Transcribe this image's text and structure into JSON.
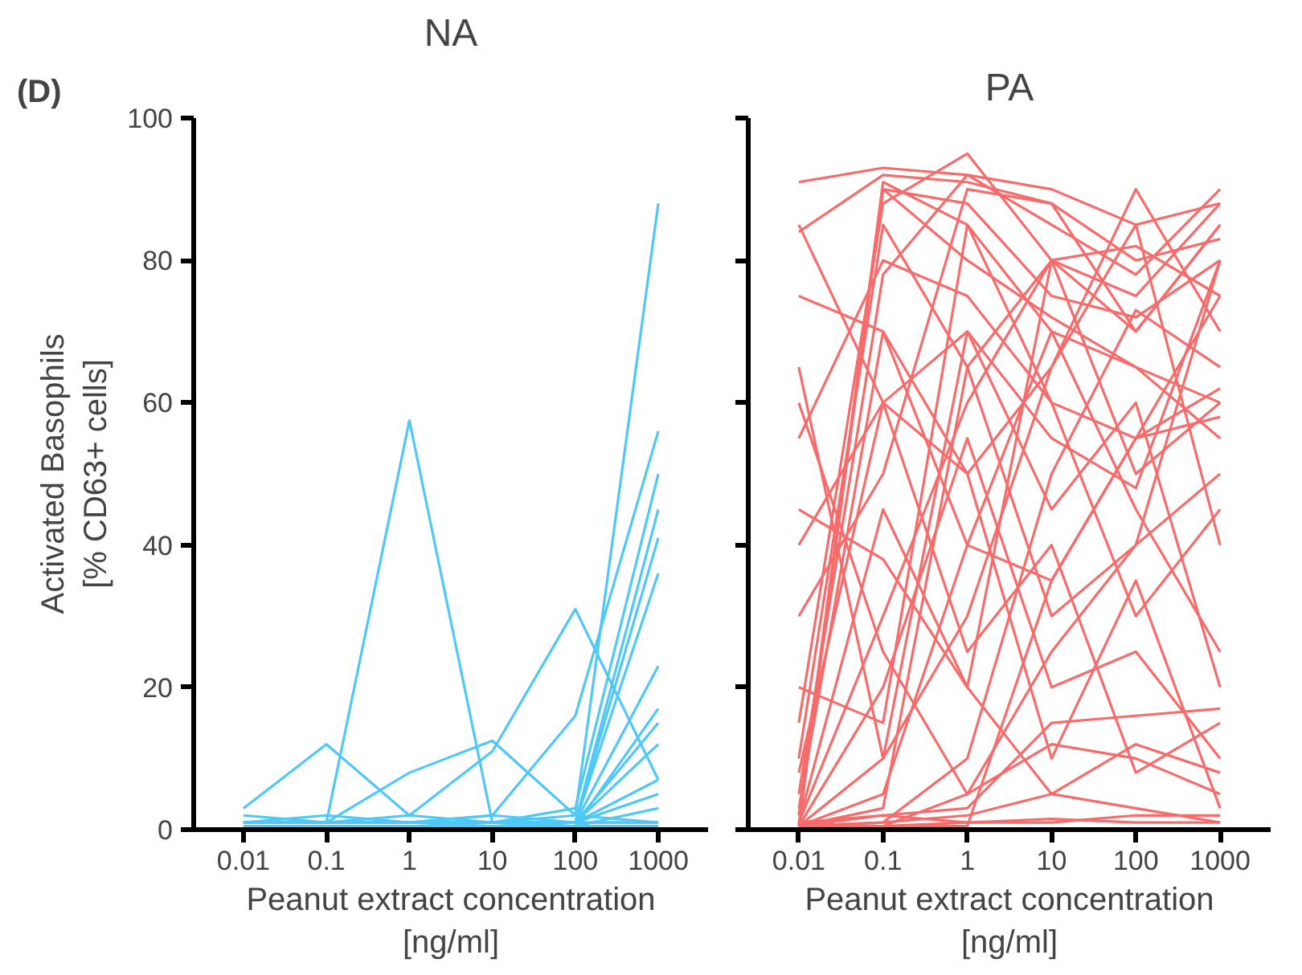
{
  "chart_data": [
    {
      "type": "line",
      "title": "NA",
      "xlabel": "Peanut extract concentration\n[ng/ml]",
      "ylabel": "Activated Basophils\n[% CD63+ cells]",
      "annotations": [
        "(D)"
      ],
      "categories": [
        "0.01",
        "0.1",
        "1",
        "10",
        "100",
        "1000"
      ],
      "ylim": [
        0,
        100
      ],
      "yticks": [
        0,
        20,
        40,
        60,
        80,
        100
      ],
      "grid": false,
      "series": [
        {
          "color": "#4fc8f5",
          "values": [
            1,
            1,
            1,
            1,
            2,
            88
          ]
        },
        {
          "color": "#4fc8f5",
          "values": [
            1,
            1,
            57.5,
            1,
            1,
            7
          ]
        },
        {
          "color": "#4fc8f5",
          "values": [
            3,
            12,
            2,
            1,
            1,
            1
          ]
        },
        {
          "color": "#4fc8f5",
          "values": [
            1,
            1,
            8,
            12.5,
            2,
            1
          ]
        },
        {
          "color": "#4fc8f5",
          "values": [
            1,
            1,
            2,
            11,
            31,
            7
          ]
        },
        {
          "color": "#4fc8f5",
          "values": [
            1,
            1,
            1,
            2,
            16,
            56
          ]
        },
        {
          "color": "#4fc8f5",
          "values": [
            1,
            1,
            1,
            1,
            3,
            50
          ]
        },
        {
          "color": "#4fc8f5",
          "values": [
            1,
            1,
            1,
            1,
            1,
            45
          ]
        },
        {
          "color": "#4fc8f5",
          "values": [
            1,
            1,
            1,
            1,
            1,
            41
          ]
        },
        {
          "color": "#4fc8f5",
          "values": [
            1,
            2,
            1,
            1,
            1,
            36
          ]
        },
        {
          "color": "#4fc8f5",
          "values": [
            1,
            1,
            1,
            1,
            1,
            23
          ]
        },
        {
          "color": "#4fc8f5",
          "values": [
            1,
            1,
            1,
            1,
            0.5,
            17
          ]
        },
        {
          "color": "#4fc8f5",
          "values": [
            1,
            1,
            1,
            1,
            1,
            15
          ]
        },
        {
          "color": "#4fc8f5",
          "values": [
            1,
            1,
            1,
            0.5,
            1,
            12
          ]
        },
        {
          "color": "#4fc8f5",
          "values": [
            1,
            1,
            1,
            1,
            1,
            5
          ]
        },
        {
          "color": "#4fc8f5",
          "values": [
            0.5,
            0.5,
            0.5,
            0.5,
            0.5,
            3
          ]
        },
        {
          "color": "#4fc8f5",
          "values": [
            2,
            1,
            1,
            2,
            1,
            1
          ]
        },
        {
          "color": "#4fc8f5",
          "values": [
            0.5,
            0.5,
            0.5,
            0.5,
            0.5,
            0.5
          ]
        }
      ]
    },
    {
      "type": "line",
      "title": "PA",
      "xlabel": "Peanut extract concentration\n[ng/ml]",
      "categories": [
        "0.01",
        "0.1",
        "1",
        "10",
        "100",
        "1000"
      ],
      "ylim": [
        0,
        100
      ],
      "yticks": [
        0,
        20,
        40,
        60,
        80,
        100
      ],
      "tick_labels": "x",
      "grid": false,
      "series": [
        {
          "color": "#f86b6b",
          "values": [
            91,
            93,
            92,
            90,
            85,
            88
          ]
        },
        {
          "color": "#f86b6b",
          "values": [
            84,
            92,
            91,
            88,
            80,
            83
          ]
        },
        {
          "color": "#f86b6b",
          "values": [
            2,
            90,
            88,
            75,
            72,
            80
          ]
        },
        {
          "color": "#f86b6b",
          "values": [
            0.5,
            91,
            85,
            60,
            55,
            58
          ]
        },
        {
          "color": "#f86b6b",
          "values": [
            1,
            30,
            60,
            80,
            82,
            75
          ]
        },
        {
          "color": "#f86b6b",
          "values": [
            0.5,
            5,
            40,
            70,
            65,
            60
          ]
        },
        {
          "color": "#f86b6b",
          "values": [
            5,
            78,
            92,
            85,
            78,
            90
          ]
        },
        {
          "color": "#f86b6b",
          "values": [
            0.5,
            1,
            10,
            50,
            73,
            65
          ]
        },
        {
          "color": "#f86b6b",
          "values": [
            65,
            10,
            70,
            55,
            48,
            80
          ]
        },
        {
          "color": "#f86b6b",
          "values": [
            40,
            60,
            70,
            45,
            60,
            20
          ]
        },
        {
          "color": "#f86b6b",
          "values": [
            10,
            85,
            65,
            30,
            40,
            50
          ]
        },
        {
          "color": "#f86b6b",
          "values": [
            0.5,
            0.5,
            5,
            25,
            40,
            80
          ]
        },
        {
          "color": "#f86b6b",
          "values": [
            1,
            45,
            20,
            80,
            70,
            85
          ]
        },
        {
          "color": "#f86b6b",
          "values": [
            75,
            70,
            40,
            35,
            55,
            62
          ]
        },
        {
          "color": "#f86b6b",
          "values": [
            20,
            15,
            85,
            70,
            45,
            25
          ]
        },
        {
          "color": "#f86b6b",
          "values": [
            0.5,
            2,
            3,
            15,
            16,
            17
          ]
        },
        {
          "color": "#f86b6b",
          "values": [
            0.5,
            0.5,
            1,
            1,
            2,
            2
          ]
        },
        {
          "color": "#f86b6b",
          "values": [
            1,
            2,
            1,
            1.5,
            1,
            1
          ]
        },
        {
          "color": "#f86b6b",
          "values": [
            55,
            80,
            75,
            60,
            30,
            45
          ]
        },
        {
          "color": "#f86b6b",
          "values": [
            30,
            50,
            90,
            88,
            70,
            85
          ]
        },
        {
          "color": "#f86b6b",
          "values": [
            8,
            60,
            25,
            40,
            8,
            15
          ]
        },
        {
          "color": "#f86b6b",
          "values": [
            0.5,
            20,
            55,
            20,
            25,
            10
          ]
        },
        {
          "color": "#f86b6b",
          "values": [
            85,
            60,
            50,
            65,
            85,
            40
          ]
        },
        {
          "color": "#f86b6b",
          "values": [
            0.5,
            90,
            80,
            72,
            65,
            55
          ]
        },
        {
          "color": "#f86b6b",
          "values": [
            3,
            70,
            50,
            10,
            35,
            3
          ]
        },
        {
          "color": "#f86b6b",
          "values": [
            0.5,
            10,
            30,
            65,
            90,
            70
          ]
        },
        {
          "color": "#f86b6b",
          "values": [
            45,
            38,
            20,
            5,
            12,
            8
          ]
        },
        {
          "color": "#f86b6b",
          "values": [
            0.5,
            0.5,
            0.5,
            35,
            55,
            75
          ]
        },
        {
          "color": "#f86b6b",
          "values": [
            15,
            88,
            95,
            80,
            50,
            60
          ]
        },
        {
          "color": "#f86b6b",
          "values": [
            0.5,
            3,
            65,
            80,
            75,
            88
          ]
        },
        {
          "color": "#f86b6b",
          "values": [
            60,
            25,
            5,
            12,
            10,
            5
          ]
        },
        {
          "color": "#f86b6b",
          "values": [
            0.5,
            1,
            2,
            5,
            3,
            1
          ]
        }
      ]
    }
  ]
}
